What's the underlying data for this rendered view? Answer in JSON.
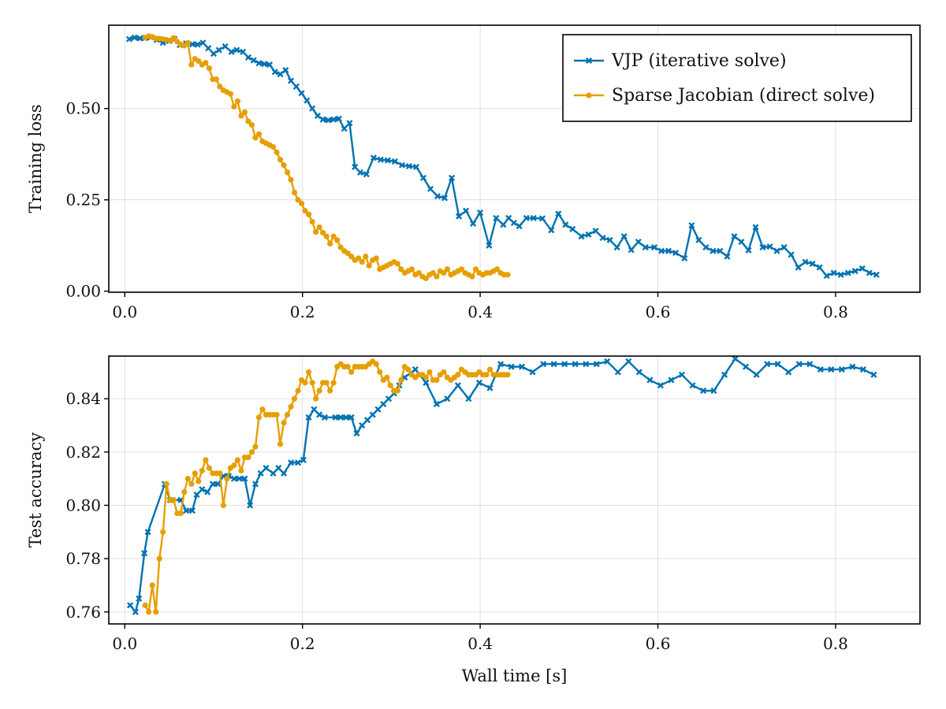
{
  "chart_data": [
    {
      "type": "line",
      "title": "",
      "xlabel": "",
      "ylabel": "Training loss",
      "xlim": [
        -0.018,
        0.895
      ],
      "ylim": [
        -0.003,
        0.728
      ],
      "xticks": [
        0.0,
        0.2,
        0.4,
        0.6,
        0.8
      ],
      "xtick_labels": [
        "0.0",
        "0.2",
        "0.4",
        "0.6",
        "0.8"
      ],
      "yticks": [
        0.0,
        0.25,
        0.5
      ],
      "ytick_labels": [
        "0.00",
        "0.25",
        "0.50"
      ],
      "grid": true,
      "legend": {
        "position": "top-right",
        "entries": [
          "VJP (iterative solve)",
          "Sparse Jacobian (direct solve)"
        ]
      },
      "series": [
        {
          "name": "VJP (iterative solve)",
          "color": "#0072b2",
          "marker": "x",
          "x": [
            0.005,
            0.011,
            0.017,
            0.023,
            0.029,
            0.036,
            0.043,
            0.05,
            0.056,
            0.062,
            0.069,
            0.076,
            0.082,
            0.088,
            0.094,
            0.1,
            0.106,
            0.113,
            0.12,
            0.126,
            0.133,
            0.139,
            0.145,
            0.151,
            0.157,
            0.163,
            0.169,
            0.175,
            0.181,
            0.187,
            0.193,
            0.199,
            0.205,
            0.211,
            0.217,
            0.223,
            0.229,
            0.235,
            0.241,
            0.247,
            0.253,
            0.259,
            0.265,
            0.272,
            0.28,
            0.288,
            0.296,
            0.304,
            0.312,
            0.32,
            0.328,
            0.336,
            0.344,
            0.352,
            0.36,
            0.368,
            0.376,
            0.384,
            0.392,
            0.4,
            0.41,
            0.418,
            0.426,
            0.432,
            0.438,
            0.444,
            0.452,
            0.46,
            0.47,
            0.48,
            0.488,
            0.496,
            0.504,
            0.514,
            0.522,
            0.53,
            0.538,
            0.546,
            0.554,
            0.562,
            0.57,
            0.578,
            0.586,
            0.596,
            0.604,
            0.612,
            0.62,
            0.63,
            0.638,
            0.646,
            0.654,
            0.662,
            0.67,
            0.678,
            0.686,
            0.694,
            0.702,
            0.71,
            0.718,
            0.726,
            0.734,
            0.742,
            0.75,
            0.758,
            0.766,
            0.774,
            0.782,
            0.79,
            0.798,
            0.806,
            0.814,
            0.822,
            0.83,
            0.838,
            0.846
          ],
          "y": [
            0.69,
            0.694,
            0.692,
            0.693,
            0.695,
            0.688,
            0.68,
            0.685,
            0.69,
            0.674,
            0.678,
            0.676,
            0.675,
            0.68,
            0.665,
            0.65,
            0.66,
            0.67,
            0.655,
            0.66,
            0.655,
            0.64,
            0.632,
            0.624,
            0.622,
            0.62,
            0.6,
            0.594,
            0.605,
            0.576,
            0.56,
            0.542,
            0.522,
            0.5,
            0.48,
            0.47,
            0.468,
            0.47,
            0.472,
            0.445,
            0.46,
            0.34,
            0.325,
            0.32,
            0.365,
            0.36,
            0.358,
            0.355,
            0.345,
            0.342,
            0.34,
            0.31,
            0.28,
            0.26,
            0.255,
            0.31,
            0.205,
            0.22,
            0.185,
            0.215,
            0.125,
            0.2,
            0.182,
            0.2,
            0.187,
            0.178,
            0.2,
            0.2,
            0.199,
            0.167,
            0.212,
            0.182,
            0.17,
            0.15,
            0.155,
            0.165,
            0.146,
            0.14,
            0.12,
            0.15,
            0.113,
            0.135,
            0.12,
            0.12,
            0.11,
            0.11,
            0.105,
            0.09,
            0.18,
            0.14,
            0.12,
            0.11,
            0.11,
            0.095,
            0.15,
            0.135,
            0.112,
            0.175,
            0.12,
            0.122,
            0.11,
            0.12,
            0.1,
            0.065,
            0.08,
            0.075,
            0.065,
            0.042,
            0.05,
            0.045,
            0.05,
            0.055,
            0.062,
            0.05,
            0.045
          ]
        },
        {
          "name": "Sparse Jacobian (direct solve)",
          "color": "#e69f00",
          "marker": "o",
          "x": [
            0.023,
            0.027,
            0.031,
            0.035,
            0.039,
            0.043,
            0.047,
            0.051,
            0.055,
            0.059,
            0.063,
            0.067,
            0.071,
            0.075,
            0.079,
            0.083,
            0.087,
            0.091,
            0.095,
            0.099,
            0.103,
            0.107,
            0.111,
            0.115,
            0.119,
            0.123,
            0.127,
            0.131,
            0.135,
            0.139,
            0.143,
            0.147,
            0.151,
            0.155,
            0.159,
            0.163,
            0.167,
            0.171,
            0.175,
            0.179,
            0.183,
            0.187,
            0.191,
            0.195,
            0.199,
            0.203,
            0.207,
            0.211,
            0.215,
            0.219,
            0.223,
            0.227,
            0.231,
            0.235,
            0.239,
            0.243,
            0.247,
            0.251,
            0.255,
            0.259,
            0.263,
            0.267,
            0.271,
            0.275,
            0.279,
            0.283,
            0.287,
            0.291,
            0.295,
            0.299,
            0.303,
            0.307,
            0.311,
            0.315,
            0.319,
            0.323,
            0.327,
            0.331,
            0.335,
            0.339,
            0.343,
            0.347,
            0.351,
            0.355,
            0.359,
            0.363,
            0.367,
            0.371,
            0.375,
            0.379,
            0.383,
            0.387,
            0.391,
            0.395,
            0.399,
            0.403,
            0.407,
            0.411,
            0.415,
            0.419,
            0.423,
            0.427,
            0.431
          ],
          "y": [
            0.694,
            0.698,
            0.696,
            0.692,
            0.691,
            0.69,
            0.688,
            0.686,
            0.693,
            0.683,
            0.675,
            0.672,
            0.68,
            0.62,
            0.636,
            0.63,
            0.62,
            0.625,
            0.61,
            0.58,
            0.58,
            0.56,
            0.55,
            0.545,
            0.54,
            0.505,
            0.52,
            0.48,
            0.49,
            0.465,
            0.455,
            0.42,
            0.43,
            0.41,
            0.405,
            0.4,
            0.395,
            0.38,
            0.36,
            0.345,
            0.325,
            0.305,
            0.27,
            0.25,
            0.24,
            0.22,
            0.21,
            0.19,
            0.162,
            0.175,
            0.16,
            0.15,
            0.13,
            0.15,
            0.14,
            0.12,
            0.11,
            0.104,
            0.095,
            0.085,
            0.09,
            0.08,
            0.095,
            0.07,
            0.085,
            0.09,
            0.06,
            0.065,
            0.07,
            0.075,
            0.08,
            0.075,
            0.06,
            0.05,
            0.055,
            0.06,
            0.045,
            0.05,
            0.04,
            0.035,
            0.045,
            0.05,
            0.04,
            0.055,
            0.05,
            0.06,
            0.045,
            0.05,
            0.055,
            0.06,
            0.05,
            0.045,
            0.04,
            0.06,
            0.05,
            0.045,
            0.05,
            0.05,
            0.055,
            0.06,
            0.05,
            0.045,
            0.045
          ]
        }
      ]
    },
    {
      "type": "line",
      "title": "",
      "xlabel": "Wall time [s]",
      "ylabel": "Test accuracy",
      "xlim": [
        -0.018,
        0.895
      ],
      "ylim": [
        0.7555,
        0.856
      ],
      "xticks": [
        0.0,
        0.2,
        0.4,
        0.6,
        0.8
      ],
      "xtick_labels": [
        "0.0",
        "0.2",
        "0.4",
        "0.6",
        "0.8"
      ],
      "yticks": [
        0.76,
        0.78,
        0.8,
        0.82,
        0.84
      ],
      "ytick_labels": [
        "0.76",
        "0.78",
        "0.80",
        "0.82",
        "0.84"
      ],
      "grid": true,
      "legend": null,
      "series": [
        {
          "name": "VJP (iterative solve)",
          "color": "#0072b2",
          "marker": "x",
          "x": [
            0.006,
            0.012,
            0.016,
            0.022,
            0.026,
            0.045,
            0.051,
            0.063,
            0.069,
            0.076,
            0.081,
            0.087,
            0.093,
            0.099,
            0.105,
            0.111,
            0.117,
            0.123,
            0.129,
            0.135,
            0.141,
            0.147,
            0.153,
            0.159,
            0.167,
            0.173,
            0.179,
            0.187,
            0.195,
            0.201,
            0.207,
            0.213,
            0.219,
            0.225,
            0.237,
            0.243,
            0.249,
            0.255,
            0.261,
            0.267,
            0.273,
            0.279,
            0.285,
            0.291,
            0.297,
            0.303,
            0.309,
            0.315,
            0.327,
            0.339,
            0.351,
            0.363,
            0.375,
            0.387,
            0.399,
            0.411,
            0.423,
            0.435,
            0.447,
            0.459,
            0.471,
            0.483,
            0.495,
            0.507,
            0.519,
            0.531,
            0.543,
            0.555,
            0.567,
            0.579,
            0.591,
            0.603,
            0.615,
            0.627,
            0.639,
            0.651,
            0.663,
            0.675,
            0.687,
            0.699,
            0.711,
            0.723,
            0.735,
            0.747,
            0.759,
            0.771,
            0.783,
            0.795,
            0.807,
            0.819,
            0.831,
            0.843
          ],
          "y": [
            0.7625,
            0.76,
            0.765,
            0.782,
            0.79,
            0.808,
            0.802,
            0.802,
            0.798,
            0.798,
            0.804,
            0.806,
            0.805,
            0.808,
            0.808,
            0.811,
            0.811,
            0.81,
            0.81,
            0.81,
            0.8,
            0.808,
            0.812,
            0.814,
            0.812,
            0.814,
            0.812,
            0.816,
            0.816,
            0.817,
            0.833,
            0.836,
            0.834,
            0.833,
            0.833,
            0.833,
            0.833,
            0.833,
            0.827,
            0.83,
            0.832,
            0.834,
            0.836,
            0.838,
            0.84,
            0.842,
            0.845,
            0.848,
            0.851,
            0.846,
            0.838,
            0.84,
            0.845,
            0.84,
            0.846,
            0.844,
            0.853,
            0.852,
            0.852,
            0.85,
            0.853,
            0.853,
            0.853,
            0.853,
            0.853,
            0.853,
            0.854,
            0.85,
            0.854,
            0.85,
            0.847,
            0.845,
            0.847,
            0.849,
            0.845,
            0.843,
            0.843,
            0.849,
            0.855,
            0.852,
            0.849,
            0.853,
            0.853,
            0.85,
            0.853,
            0.853,
            0.851,
            0.851,
            0.851,
            0.852,
            0.851,
            0.849
          ]
        },
        {
          "name": "Sparse Jacobian (direct solve)",
          "color": "#e69f00",
          "marker": "o",
          "x": [
            0.023,
            0.027,
            0.031,
            0.035,
            0.039,
            0.043,
            0.047,
            0.051,
            0.055,
            0.059,
            0.063,
            0.067,
            0.071,
            0.075,
            0.079,
            0.083,
            0.087,
            0.091,
            0.095,
            0.099,
            0.103,
            0.107,
            0.111,
            0.115,
            0.119,
            0.123,
            0.127,
            0.131,
            0.135,
            0.139,
            0.143,
            0.147,
            0.151,
            0.155,
            0.159,
            0.163,
            0.167,
            0.171,
            0.175,
            0.179,
            0.183,
            0.187,
            0.191,
            0.195,
            0.199,
            0.203,
            0.207,
            0.211,
            0.215,
            0.219,
            0.223,
            0.227,
            0.231,
            0.235,
            0.239,
            0.243,
            0.247,
            0.251,
            0.255,
            0.259,
            0.263,
            0.267,
            0.271,
            0.275,
            0.279,
            0.283,
            0.287,
            0.291,
            0.295,
            0.299,
            0.303,
            0.307,
            0.311,
            0.315,
            0.319,
            0.323,
            0.327,
            0.331,
            0.335,
            0.339,
            0.343,
            0.347,
            0.351,
            0.355,
            0.359,
            0.363,
            0.367,
            0.371,
            0.375,
            0.379,
            0.383,
            0.387,
            0.391,
            0.395,
            0.399,
            0.403,
            0.407,
            0.411,
            0.415,
            0.419,
            0.423,
            0.427,
            0.431
          ],
          "y": [
            0.7625,
            0.76,
            0.77,
            0.76,
            0.78,
            0.79,
            0.808,
            0.802,
            0.802,
            0.797,
            0.797,
            0.805,
            0.81,
            0.808,
            0.812,
            0.809,
            0.813,
            0.817,
            0.814,
            0.812,
            0.812,
            0.812,
            0.8,
            0.81,
            0.814,
            0.815,
            0.817,
            0.813,
            0.818,
            0.818,
            0.82,
            0.822,
            0.833,
            0.836,
            0.834,
            0.834,
            0.834,
            0.834,
            0.823,
            0.831,
            0.834,
            0.837,
            0.84,
            0.843,
            0.847,
            0.846,
            0.85,
            0.846,
            0.84,
            0.843,
            0.846,
            0.846,
            0.843,
            0.846,
            0.852,
            0.853,
            0.852,
            0.852,
            0.85,
            0.852,
            0.852,
            0.852,
            0.852,
            0.853,
            0.854,
            0.853,
            0.85,
            0.847,
            0.848,
            0.845,
            0.843,
            0.843,
            0.847,
            0.852,
            0.851,
            0.849,
            0.848,
            0.849,
            0.849,
            0.848,
            0.85,
            0.847,
            0.847,
            0.849,
            0.85,
            0.848,
            0.847,
            0.848,
            0.849,
            0.851,
            0.85,
            0.849,
            0.849,
            0.849,
            0.85,
            0.849,
            0.849,
            0.851,
            0.849,
            0.849,
            0.849,
            0.849,
            0.849
          ]
        }
      ]
    }
  ]
}
